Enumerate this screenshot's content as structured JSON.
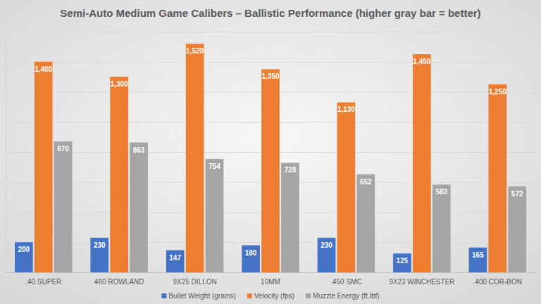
{
  "chart_data": {
    "type": "bar",
    "title": "Semi-Auto Medium Game Calibers – Ballistic Performance (higher gray bar = better)",
    "categories": [
      ".40 SUPER",
      "460 ROWLAND",
      "9X25 DILLON",
      "10MM",
      ".450 SMC",
      "9X23 WINCHESTER",
      ".400 COR-BON"
    ],
    "series": [
      {
        "name": "Bullet Weight (grains)",
        "color": "#4472c4",
        "values": [
          200,
          230,
          147,
          180,
          230,
          125,
          165
        ]
      },
      {
        "name": "Velocity (fps)",
        "color": "#ed7d31",
        "values": [
          1400,
          1300,
          1520,
          1350,
          1130,
          1450,
          1250
        ],
        "value_labels": [
          "1,400",
          "1,300",
          "1,520",
          "1,350",
          "1,130",
          "1,450",
          "1,250"
        ]
      },
      {
        "name": "Muzzle Energy (ft.lbf)",
        "color": "#a5a5a5",
        "values": [
          870,
          863,
          754,
          728,
          652,
          583,
          572
        ]
      }
    ],
    "ylim": [
      0,
      1600
    ],
    "yticks": [
      0,
      200,
      400,
      600,
      800,
      1000,
      1200,
      1400,
      1600
    ],
    "grid": true,
    "legend": "bottom",
    "data_labels": true,
    "tick_labels": "x"
  }
}
